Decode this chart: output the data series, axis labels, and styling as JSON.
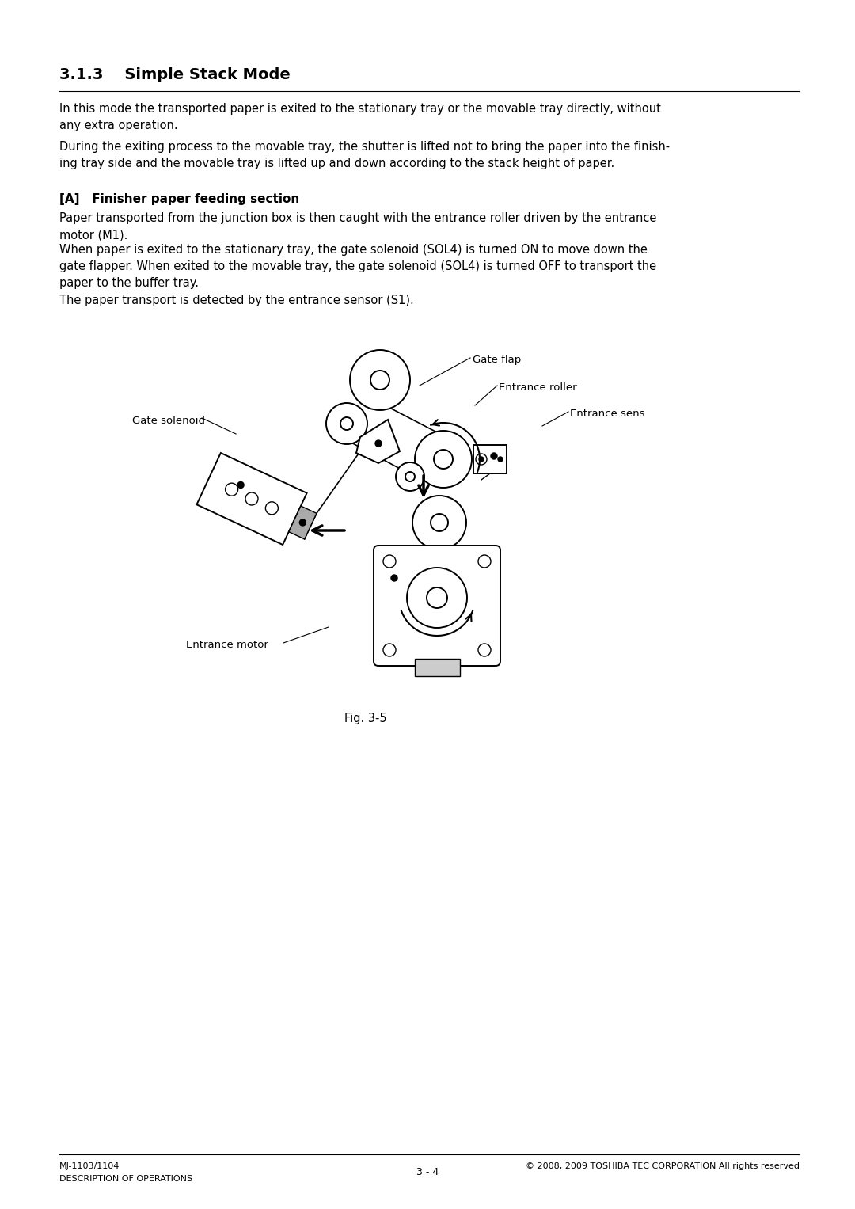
{
  "title": "3.1.3    Simple Stack Mode",
  "section_a_title": "[A]   Finisher paper feeding section",
  "body_text_1": "In this mode the transported paper is exited to the stationary tray or the movable tray directly, without\nany extra operation.",
  "body_text_2": "During the exiting process to the movable tray, the shutter is lifted not to bring the paper into the finish-\ning tray side and the movable tray is lifted up and down according to the stack height of paper.",
  "body_text_3": "Paper transported from the junction box is then caught with the entrance roller driven by the entrance\nmotor (M1).",
  "body_text_4": "When paper is exited to the stationary tray, the gate solenoid (SOL4) is turned ON to move down the\ngate flapper. When exited to the movable tray, the gate solenoid (SOL4) is turned OFF to transport the\npaper to the buffer tray.",
  "body_text_5": "The paper transport is detected by the entrance sensor (S1).",
  "fig_caption": "Fig. 3-5",
  "footer_left_1": "MJ-1103/1104",
  "footer_left_2": "DESCRIPTION OF OPERATIONS",
  "footer_center": "3 - 4",
  "footer_right": "© 2008, 2009 TOSHIBA TEC CORPORATION All rights reserved",
  "bg_color": "#ffffff",
  "text_color": "#000000",
  "font_size_body": 10.5,
  "font_size_title": 14,
  "font_size_section": 11
}
